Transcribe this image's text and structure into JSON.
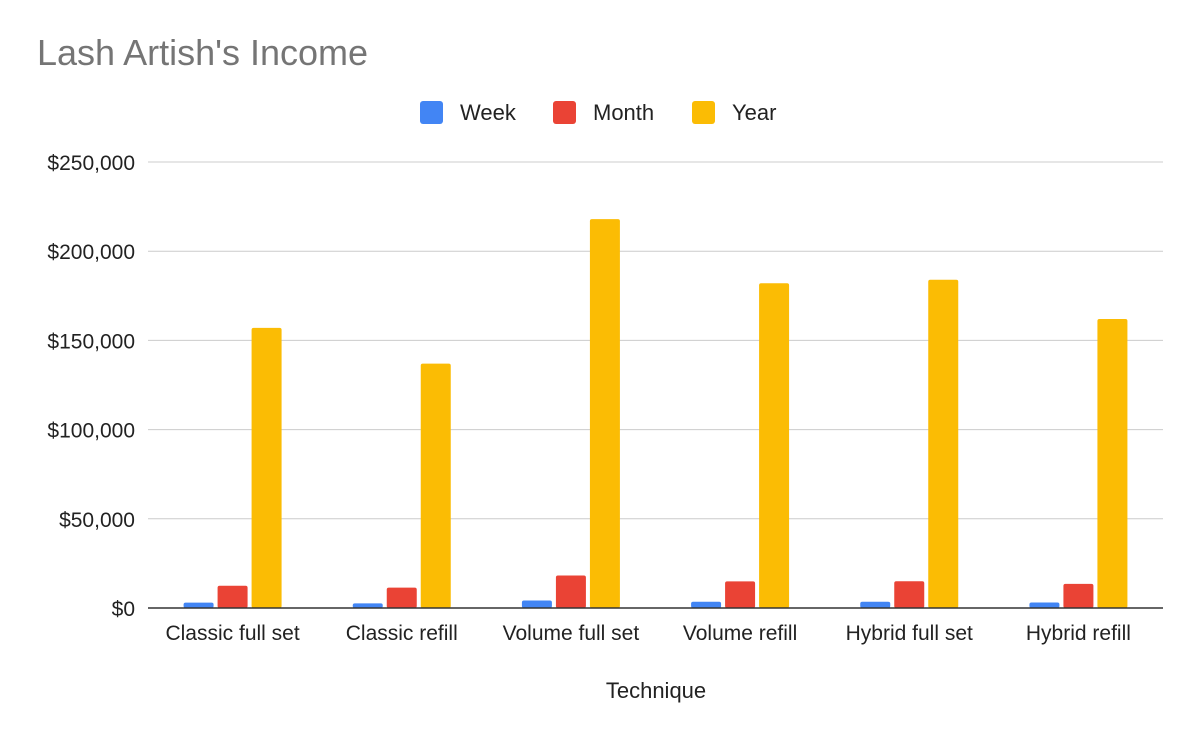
{
  "chart_data": {
    "type": "bar",
    "title": "Lash Artish's Income",
    "xlabel": "Technique",
    "ylabel": "",
    "categories": [
      "Classic full set",
      "Classic refill",
      "Volume full set",
      "Volume refill",
      "Hybrid full set",
      "Hybrid refill"
    ],
    "series": [
      {
        "name": "Week",
        "color": "#4285f4",
        "values": [
          3000,
          2600,
          4200,
          3500,
          3500,
          3100
        ]
      },
      {
        "name": "Month",
        "color": "#ea4335",
        "values": [
          12500,
          11400,
          18200,
          14900,
          15000,
          13500
        ]
      },
      {
        "name": "Year",
        "color": "#fbbc04",
        "values": [
          157000,
          137000,
          218000,
          182000,
          184000,
          162000
        ]
      }
    ],
    "ylim": [
      0,
      250000
    ],
    "yticks": [
      0,
      50000,
      100000,
      150000,
      200000,
      250000
    ],
    "ytick_labels": [
      "$0",
      "$50,000",
      "$100,000",
      "$150,000",
      "$200,000",
      "$250,000"
    ],
    "grid": true,
    "legend_position": "top-center"
  }
}
